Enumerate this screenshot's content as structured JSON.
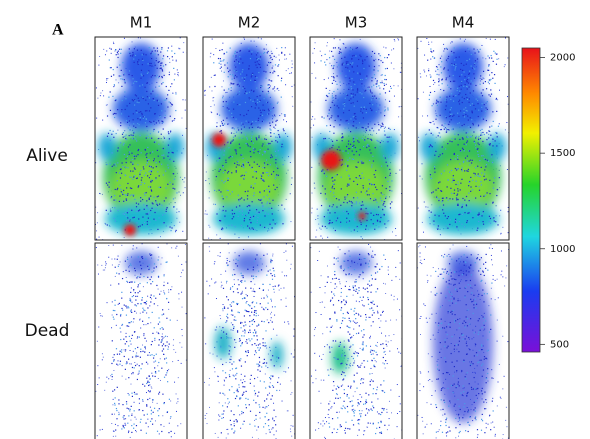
{
  "panel_label": "A",
  "columns": [
    "M1",
    "M2",
    "M3",
    "M4"
  ],
  "rows": [
    "Alive",
    "Dead"
  ],
  "colorbar": {
    "range": [
      460,
      2050
    ],
    "ticks": [
      2000,
      1500,
      1000,
      500
    ]
  }
}
